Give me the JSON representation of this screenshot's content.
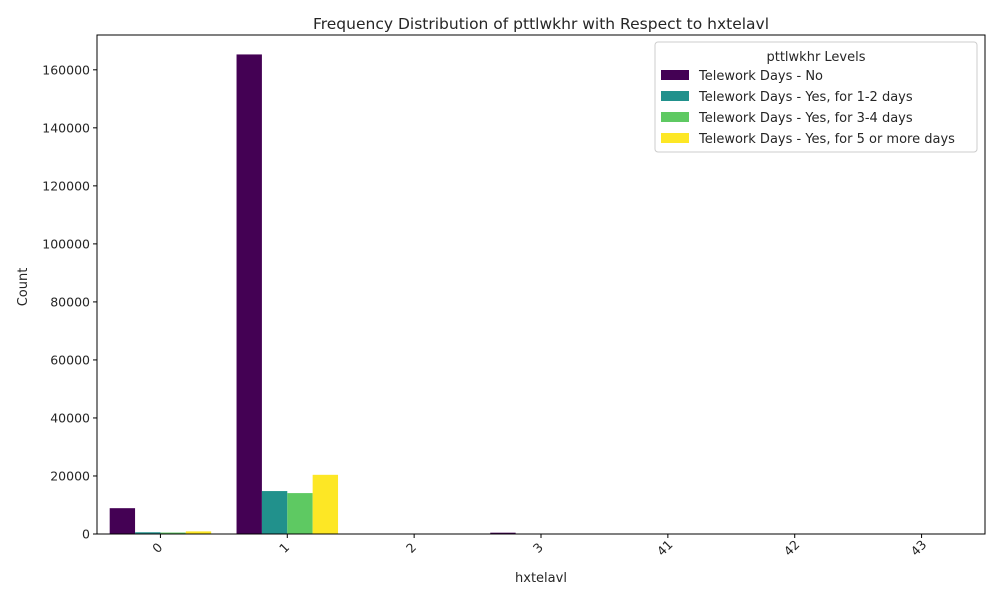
{
  "chart_data": {
    "type": "bar",
    "title": "Frequency Distribution of pttlwkhr with Respect to hxtelavl",
    "xlabel": "hxtelavl",
    "ylabel": "Count",
    "categories": [
      "0",
      "1",
      "2",
      "3",
      "41",
      "42",
      "43"
    ],
    "ylim": [
      0,
      172000
    ],
    "yticks": [
      0,
      20000,
      40000,
      60000,
      80000,
      100000,
      120000,
      140000,
      160000
    ],
    "grid": false,
    "legend": {
      "title": "pttlwkhr Levels",
      "placement": "top-right"
    },
    "series": [
      {
        "name": "Telework Days - No",
        "color": "#440154",
        "values": [
          8900,
          165300,
          0,
          450,
          0,
          0,
          0
        ]
      },
      {
        "name": "Telework Days - Yes, for 1-2 days",
        "color": "#21918c",
        "values": [
          600,
          14800,
          0,
          0,
          0,
          0,
          0
        ]
      },
      {
        "name": "Telework Days - Yes, for 3-4 days",
        "color": "#5ec962",
        "values": [
          500,
          14100,
          0,
          0,
          0,
          0,
          0
        ]
      },
      {
        "name": "Telework Days - Yes, for 5 or more days",
        "color": "#fde725",
        "values": [
          900,
          20400,
          0,
          0,
          0,
          0,
          0
        ]
      }
    ]
  }
}
